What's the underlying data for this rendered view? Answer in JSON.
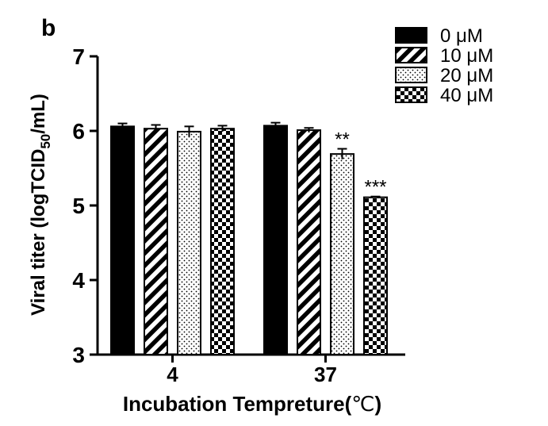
{
  "chart_data": {
    "type": "bar",
    "panel_label": "b",
    "categories": [
      "4",
      "37"
    ],
    "series": [
      {
        "name": "0 μM",
        "pattern": "solid",
        "values": [
          6.06,
          6.07
        ],
        "errors": [
          0.04,
          0.04
        ],
        "annotations": [
          "",
          ""
        ]
      },
      {
        "name": "10 μM",
        "pattern": "diagonal",
        "values": [
          6.03,
          6.01
        ],
        "errors": [
          0.05,
          0.03
        ],
        "annotations": [
          "",
          ""
        ]
      },
      {
        "name": "20 μM",
        "pattern": "dotted",
        "values": [
          5.99,
          5.69
        ],
        "errors": [
          0.07,
          0.07
        ],
        "annotations": [
          "",
          "**"
        ]
      },
      {
        "name": "40 μM",
        "pattern": "checker",
        "values": [
          6.03,
          5.11
        ],
        "errors": [
          0.04,
          0.01
        ],
        "annotations": [
          "",
          "***"
        ]
      }
    ],
    "xlabel": "Incubation Tempreture(",
    "xlabel_unit": "℃",
    "xlabel_close": ")",
    "ylabel_main": "Viral titer (logTCID",
    "ylabel_sub": "50",
    "ylabel_end": "/mL)",
    "ylim": [
      3,
      7
    ],
    "yticks": [
      "3",
      "4",
      "5",
      "6",
      "7"
    ],
    "grid": false,
    "legend_position": "top-right"
  }
}
